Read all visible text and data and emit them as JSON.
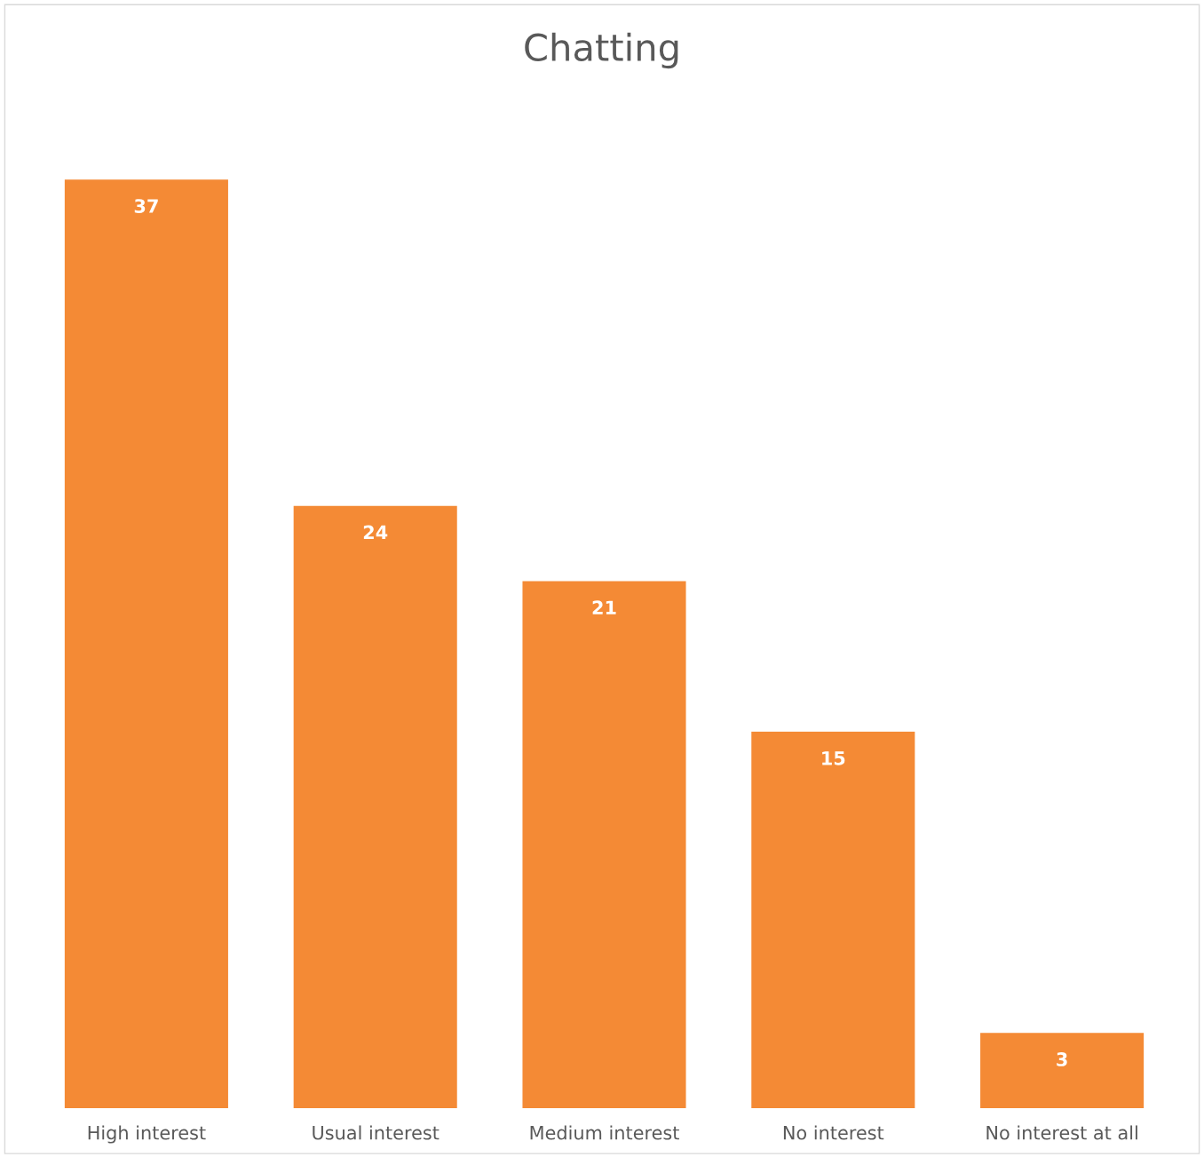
{
  "chart_data": {
    "type": "bar",
    "title": "Chatting",
    "categories": [
      "High interest",
      "Usual interest",
      "Medium interest",
      "No interest",
      "No interest at all"
    ],
    "values": [
      37,
      24,
      21,
      15,
      3
    ],
    "color": "#f48a35",
    "data_labels": true,
    "tick_labels": "x",
    "grid": false,
    "legend": false
  }
}
